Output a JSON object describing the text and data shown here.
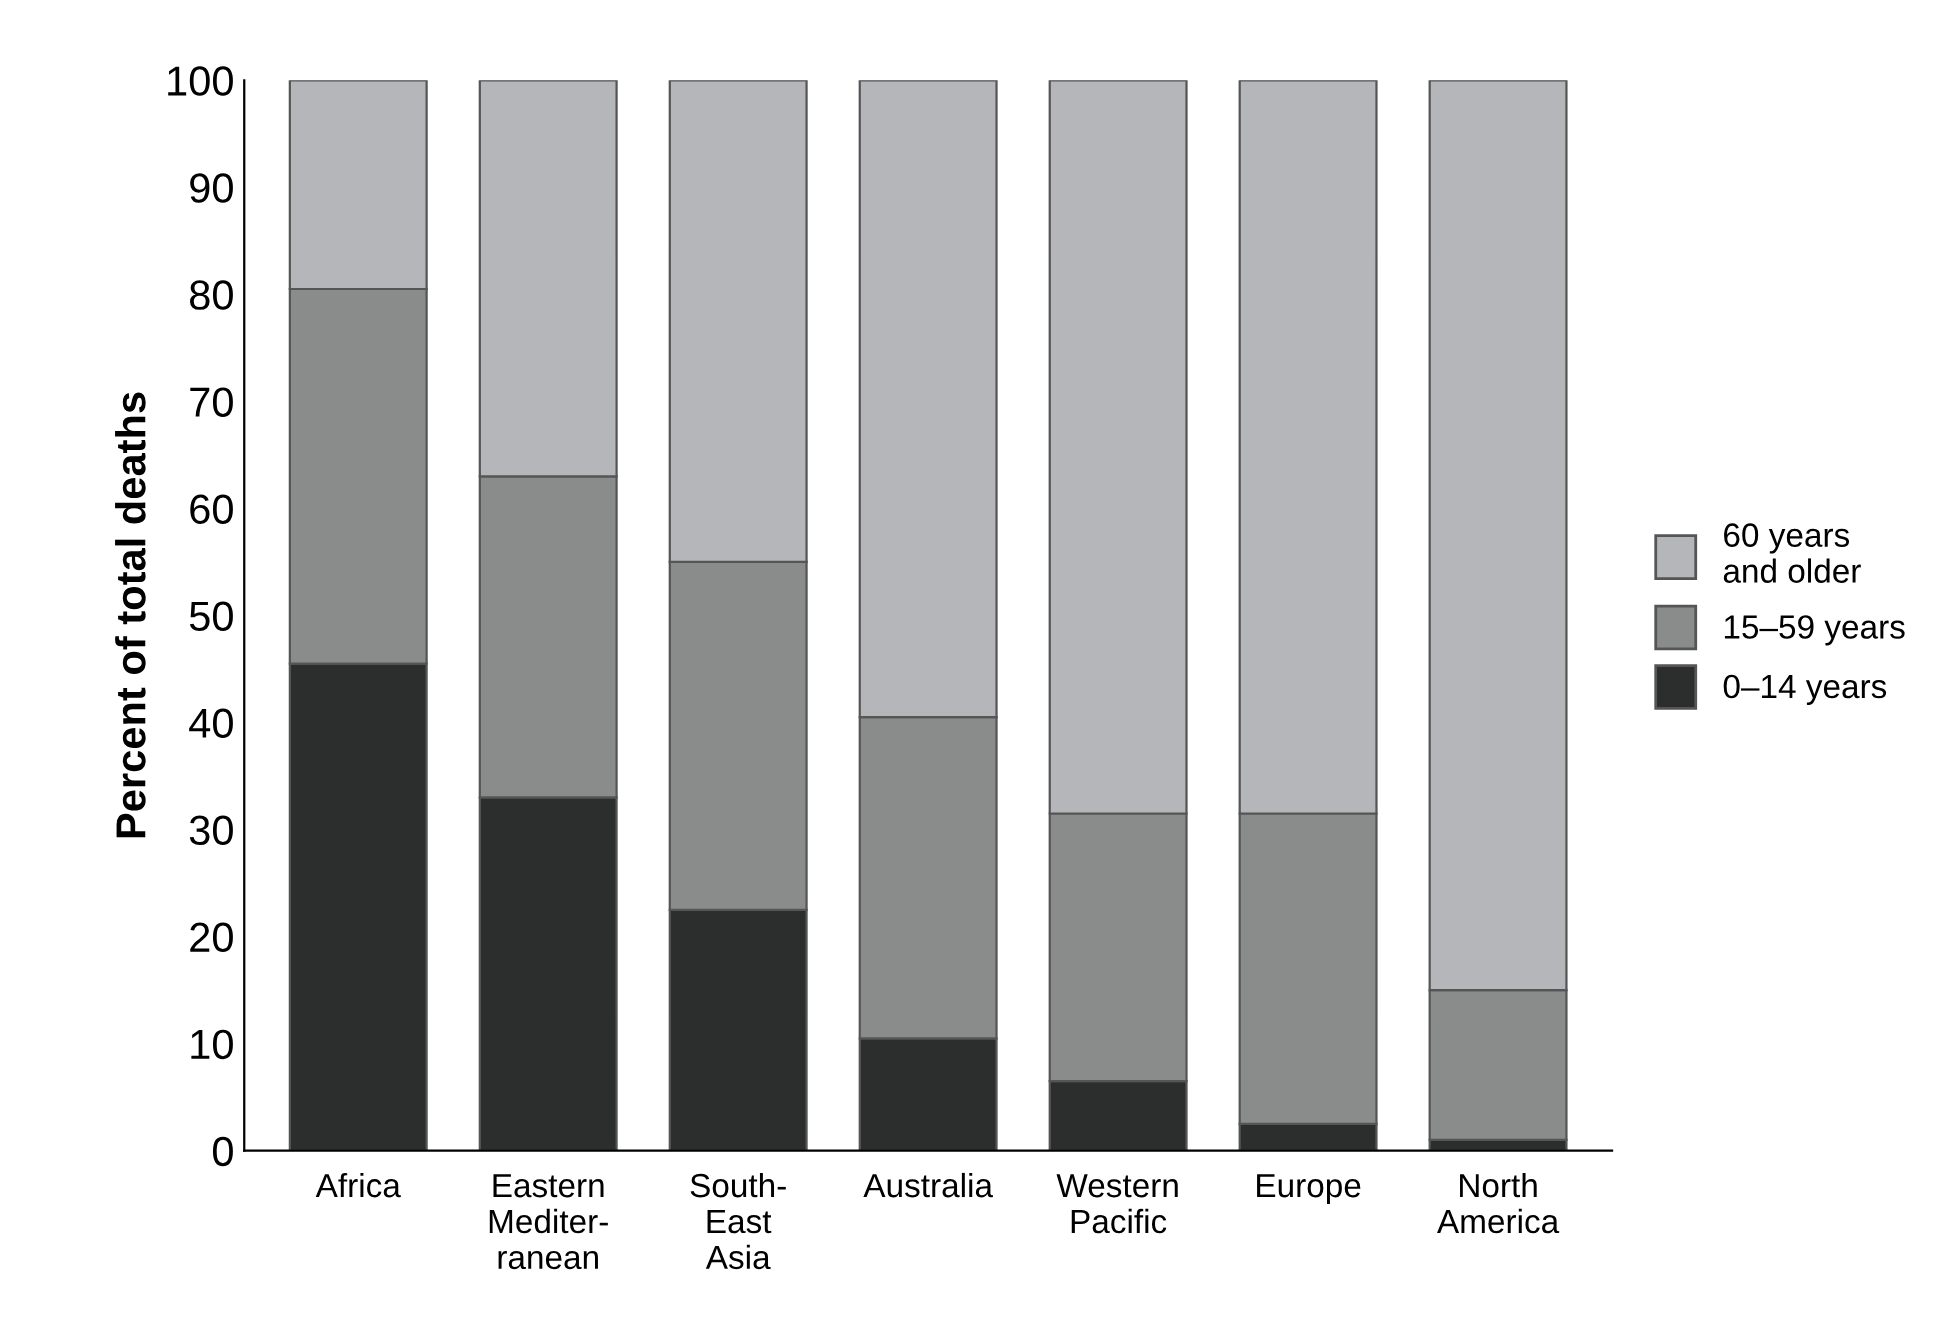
{
  "chart_data": {
    "type": "bar",
    "stacked": true,
    "ylabel": "Percent of total deaths",
    "categories": [
      "Africa",
      "Eastern\nMediter-\nranean",
      "South-\nEast\nAsia",
      "Australia",
      "Western\nPacific",
      "Europe",
      "North\nAmerica"
    ],
    "series": [
      {
        "name": "0–14 years",
        "color": "#2b2e2c",
        "values": [
          45.5,
          33,
          22.5,
          10.5,
          6.5,
          2.5,
          1
        ]
      },
      {
        "name": "15–59 years",
        "color": "#8a8c8c",
        "values": [
          35,
          30,
          32.5,
          30,
          25,
          29,
          14
        ]
      },
      {
        "name": "60 years\nand older",
        "color": "#b4b6b9",
        "values": [
          19.5,
          37,
          45,
          59.5,
          68.5,
          68.5,
          85
        ]
      }
    ],
    "ylim": [
      0,
      100
    ],
    "yticks": [
      0,
      10,
      20,
      30,
      40,
      50,
      60,
      70,
      80,
      90,
      100
    ],
    "legend": "right",
    "grid": false
  }
}
